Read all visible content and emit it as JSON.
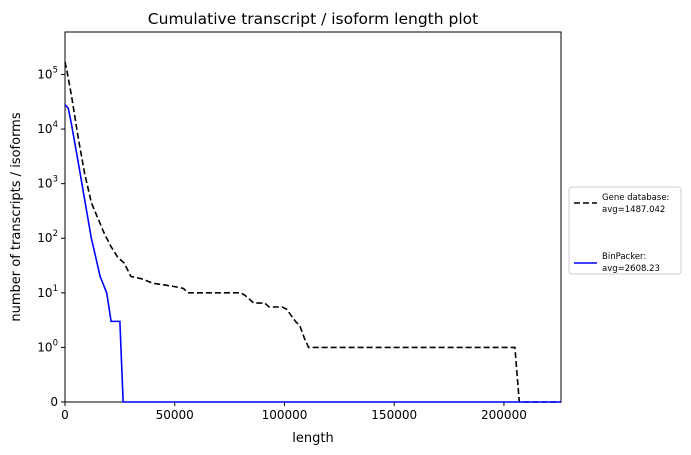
{
  "chart_data": {
    "type": "line",
    "title": "Cumulative transcript / isoform length plot",
    "xlabel": "length",
    "ylabel": "number of transcripts / isoforms",
    "xlim": [
      0,
      226000
    ],
    "y_scale": "symlog",
    "y_linthresh": 1,
    "ylim_top": 600000,
    "x_ticks": [
      0,
      50000,
      100000,
      150000,
      200000
    ],
    "x_tick_labels": [
      "0",
      "50000",
      "100000",
      "150000",
      "200000"
    ],
    "y_ticks": [
      {
        "value": 0,
        "base": "0",
        "exp": ""
      },
      {
        "value": 1,
        "base": "10",
        "exp": "0"
      },
      {
        "value": 10,
        "base": "10",
        "exp": "1"
      },
      {
        "value": 100,
        "base": "10",
        "exp": "2"
      },
      {
        "value": 1000,
        "base": "10",
        "exp": "3"
      },
      {
        "value": 10000,
        "base": "10",
        "exp": "4"
      },
      {
        "value": 100000,
        "base": "10",
        "exp": "5"
      }
    ],
    "grid": false,
    "legend_position": "outside-right",
    "series": [
      {
        "name": "Gene database:",
        "legend_line2": "avg=1487.042",
        "color": "#000000",
        "dash": "dashed",
        "points": [
          [
            0,
            170000
          ],
          [
            1000,
            110000
          ],
          [
            3000,
            40000
          ],
          [
            6000,
            7000
          ],
          [
            9000,
            1500
          ],
          [
            12000,
            450
          ],
          [
            15000,
            230
          ],
          [
            18000,
            120
          ],
          [
            21000,
            70
          ],
          [
            24000,
            45
          ],
          [
            27000,
            35
          ],
          [
            30000,
            20
          ],
          [
            35000,
            18
          ],
          [
            40000,
            15
          ],
          [
            45000,
            14
          ],
          [
            50000,
            13
          ],
          [
            54000,
            12
          ],
          [
            56000,
            10
          ],
          [
            60000,
            10
          ],
          [
            80000,
            10
          ],
          [
            82000,
            9
          ],
          [
            86000,
            6.5
          ],
          [
            91000,
            6.5
          ],
          [
            93000,
            5.5
          ],
          [
            99000,
            5.5
          ],
          [
            101000,
            5
          ],
          [
            105000,
            3
          ],
          [
            107000,
            2.5
          ],
          [
            109000,
            1.5
          ],
          [
            111000,
            1
          ],
          [
            150000,
            1
          ],
          [
            205000,
            1
          ],
          [
            207000,
            0
          ],
          [
            226000,
            0
          ]
        ]
      },
      {
        "name": "BinPacker:",
        "legend_line2": "avg=2608.23",
        "color": "#0000ff",
        "dash": "solid",
        "points": [
          [
            0,
            28000
          ],
          [
            1500,
            24000
          ],
          [
            3000,
            12000
          ],
          [
            6000,
            2500
          ],
          [
            9000,
            500
          ],
          [
            12000,
            100
          ],
          [
            14000,
            45
          ],
          [
            16000,
            20
          ],
          [
            19000,
            10
          ],
          [
            21000,
            3
          ],
          [
            25000,
            3
          ],
          [
            26500,
            0
          ],
          [
            226000,
            0
          ]
        ]
      }
    ]
  }
}
